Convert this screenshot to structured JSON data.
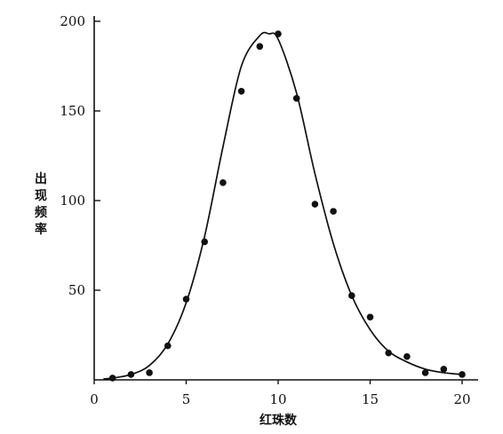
{
  "chart_data": {
    "type": "scatter",
    "title": "",
    "xlabel": "红珠数",
    "ylabel": "出现频率",
    "ylabel_chars": [
      "出",
      "现",
      "频",
      "率"
    ],
    "xlim": [
      0,
      20
    ],
    "ylim": [
      0,
      200
    ],
    "x_ticks": [
      0,
      5,
      10,
      15,
      20
    ],
    "y_ticks": [
      50,
      100,
      150,
      200
    ],
    "grid": false,
    "points": {
      "x": [
        1,
        2,
        3,
        4,
        5,
        6,
        7,
        8,
        9,
        10,
        11,
        12,
        13,
        14,
        15,
        16,
        17,
        18,
        19,
        20
      ],
      "y": [
        1,
        3,
        4,
        19,
        45,
        77,
        110,
        161,
        186,
        193,
        157,
        98,
        94,
        47,
        35,
        15,
        13,
        4,
        6,
        3
      ]
    },
    "curve": {
      "x": [
        0.5,
        1,
        2,
        3,
        4,
        5,
        6,
        7,
        8,
        9,
        9.5,
        10,
        11,
        12,
        13,
        14,
        15,
        16,
        17,
        18,
        19,
        20
      ],
      "y": [
        0.5,
        1,
        3,
        8,
        20,
        43,
        80,
        130,
        175,
        192,
        193,
        190,
        160,
        115,
        76,
        47,
        28,
        16,
        10,
        6,
        4,
        3
      ]
    },
    "colors": {
      "ink": "#111111",
      "background": "#ffffff"
    }
  }
}
